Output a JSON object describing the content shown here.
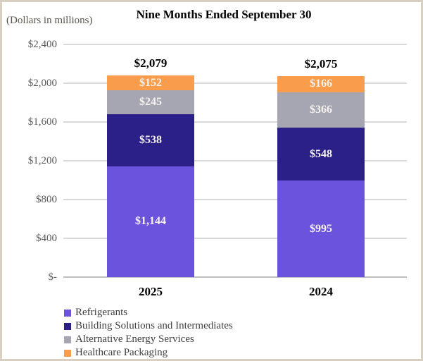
{
  "chart_data": {
    "type": "bar",
    "stacked": true,
    "title": "Nine Months Ended September 30",
    "units_label": "(Dollars in millions)",
    "categories": [
      "2025",
      "2024"
    ],
    "series": [
      {
        "name": "Refrigerants",
        "color": "#6C53DE",
        "values": [
          1144,
          995
        ],
        "value_labels": [
          "$1,144",
          "$995"
        ]
      },
      {
        "name": "Building Solutions and Intermediates",
        "color": "#2A2087",
        "values": [
          538,
          548
        ],
        "value_labels": [
          "$538",
          "$548"
        ]
      },
      {
        "name": "Alternative Energy Services",
        "color": "#A6A6B2",
        "values": [
          245,
          366
        ],
        "value_labels": [
          "$245",
          "$366"
        ]
      },
      {
        "name": "Healthcare Packaging",
        "color": "#F99C4B",
        "values": [
          152,
          166
        ],
        "value_labels": [
          "$152",
          "$166"
        ]
      }
    ],
    "totals": [
      2079,
      2075
    ],
    "total_labels": [
      "$2,079",
      "$2,075"
    ],
    "y_axis": {
      "ylim": [
        0,
        2400
      ],
      "ticks": [
        {
          "value": 0,
          "label": "$-"
        },
        {
          "value": 400,
          "label": "$400"
        },
        {
          "value": 800,
          "label": "$800"
        },
        {
          "value": 1200,
          "label": "$1,200"
        },
        {
          "value": 1600,
          "label": "$1,600"
        },
        {
          "value": 2000,
          "label": "$2,000"
        },
        {
          "value": 2400,
          "label": "$2,400"
        }
      ]
    },
    "grid": true,
    "legend_position": "bottom-left",
    "colors": {
      "grid": "#D9D9D9",
      "axis": "#BFBFBF",
      "tick_text": "#595959",
      "segment_text": "#F5F2EF",
      "frame_border": "#D8D0C1"
    }
  }
}
